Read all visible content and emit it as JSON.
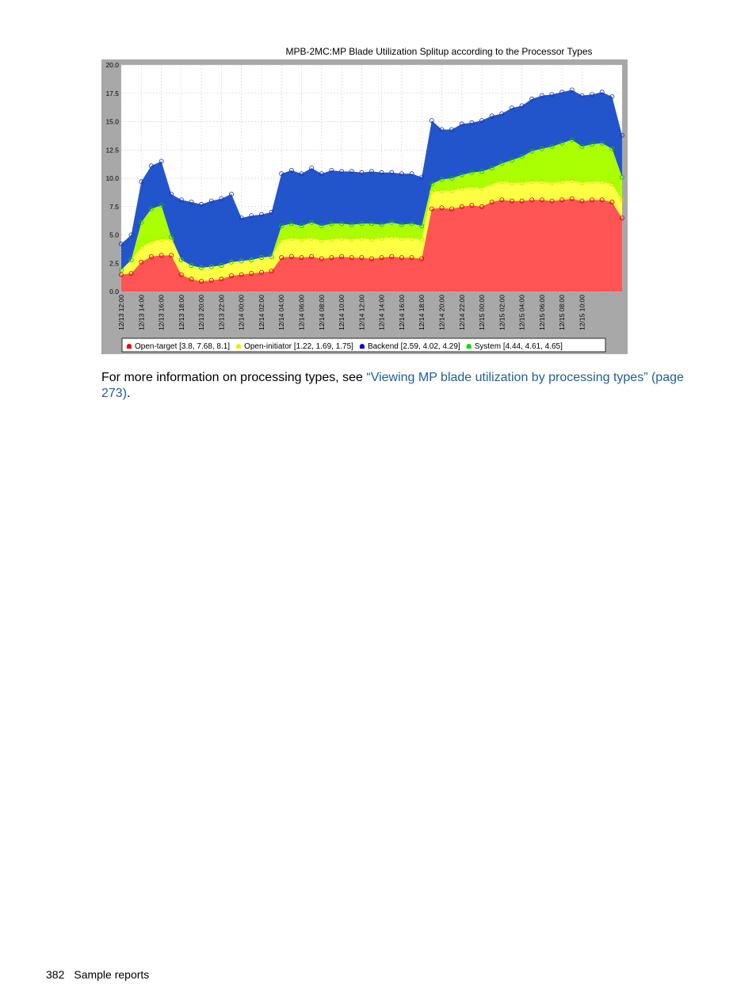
{
  "chart_data": {
    "type": "area",
    "stacked": true,
    "title": "MPB-2MC:MP Blade Utilization Splitup according to the Processor Types",
    "xlabel": "",
    "ylabel": "",
    "ylim": [
      0,
      20
    ],
    "y_ticks": [
      "0.0",
      "2.5",
      "5.0",
      "7.5",
      "10.0",
      "12.5",
      "15.0",
      "17.5",
      "20.0"
    ],
    "x_tick_labels": [
      "12/13 12:00",
      "12/13 14:00",
      "12/13 16:00",
      "12/13 18:00",
      "12/13 20:00",
      "12/13 22:00",
      "12/14 00:00",
      "12/14 02:00",
      "12/14 04:00",
      "12/14 06:00",
      "12/14 08:00",
      "12/14 10:00",
      "12/14 12:00",
      "12/14 14:00",
      "12/14 16:00",
      "12/14 18:00",
      "12/14 20:00",
      "12/14 22:00",
      "12/15 00:00",
      "12/15 02:00",
      "12/15 04:00",
      "12/15 06:00",
      "12/15 08:00",
      "12/15 10:00"
    ],
    "x_hours": [
      0,
      1,
      2,
      3,
      4,
      5,
      6,
      7,
      8,
      9,
      10,
      11,
      12,
      13,
      14,
      15,
      16,
      17,
      18,
      19,
      20,
      21,
      22,
      23,
      24,
      25,
      26,
      27,
      28,
      29,
      30,
      31,
      32,
      33,
      34,
      35,
      36,
      37,
      38,
      39,
      40,
      41,
      42,
      43,
      44,
      45,
      46,
      47,
      48,
      49,
      50
    ],
    "grid": true,
    "legend_position": "bottom",
    "series": [
      {
        "name": "Open-target",
        "legend": "Open-target [3.8, 7.68, 8.1]",
        "color": "#ff5555",
        "values": [
          1.5,
          1.6,
          2.6,
          3.1,
          3.2,
          3.2,
          1.5,
          1.1,
          0.9,
          1.0,
          1.1,
          1.4,
          1.5,
          1.6,
          1.7,
          1.8,
          3.0,
          3.1,
          3.0,
          3.1,
          2.9,
          3.0,
          3.1,
          3.0,
          3.0,
          2.9,
          3.0,
          3.1,
          3.0,
          3.0,
          2.9,
          7.3,
          7.4,
          7.3,
          7.5,
          7.6,
          7.5,
          7.9,
          8.1,
          8.0,
          8.0,
          8.1,
          8.1,
          8.0,
          8.1,
          8.2,
          8.0,
          8.1,
          8.1,
          7.9,
          6.5
        ]
      },
      {
        "name": "Open-initiator",
        "legend": "Open-initiator [1.22, 1.69, 1.75]",
        "color": "#ffff44",
        "values": [
          0.4,
          1.2,
          1.3,
          1.3,
          1.4,
          1.4,
          1.3,
          1.2,
          1.2,
          1.2,
          1.2,
          1.2,
          1.2,
          1.2,
          1.3,
          1.3,
          1.5,
          1.6,
          1.6,
          1.6,
          1.6,
          1.6,
          1.6,
          1.6,
          1.7,
          1.7,
          1.7,
          1.7,
          1.7,
          1.7,
          1.7,
          1.5,
          1.5,
          1.6,
          1.6,
          1.6,
          1.6,
          1.6,
          1.6,
          1.6,
          1.6,
          1.6,
          1.6,
          1.6,
          1.6,
          1.6,
          1.6,
          1.6,
          1.6,
          1.6,
          1.6
        ]
      },
      {
        "name": "System",
        "legend": "System [4.44, 4.61, 4.65]",
        "color": "#aaff00",
        "values": [
          0.0,
          0.0,
          2.2,
          2.9,
          3.0,
          0.2,
          0.0,
          0.0,
          0.0,
          0.0,
          0.0,
          0.0,
          0.0,
          0.0,
          0.0,
          0.0,
          1.3,
          1.3,
          1.2,
          1.4,
          1.3,
          1.4,
          1.3,
          1.3,
          1.3,
          1.4,
          1.2,
          1.3,
          1.2,
          1.3,
          1.2,
          0.7,
          1.0,
          1.1,
          1.2,
          1.3,
          1.5,
          1.4,
          1.6,
          2.0,
          2.3,
          2.7,
          2.9,
          3.2,
          3.4,
          3.6,
          3.2,
          3.3,
          3.4,
          3.1,
          2.0
        ]
      },
      {
        "name": "Backend",
        "legend": "Backend [2.59, 4.02, 4.29]",
        "color": "#2255cc",
        "values": [
          2.3,
          2.2,
          3.6,
          3.8,
          3.9,
          3.8,
          5.3,
          5.6,
          5.6,
          5.8,
          5.9,
          6.0,
          3.8,
          3.9,
          3.8,
          3.9,
          4.6,
          4.7,
          4.6,
          4.8,
          4.6,
          4.7,
          4.6,
          4.7,
          4.5,
          4.6,
          4.6,
          4.4,
          4.5,
          4.4,
          4.3,
          5.6,
          4.4,
          4.3,
          4.5,
          4.4,
          4.5,
          4.6,
          4.4,
          4.6,
          4.5,
          4.6,
          4.7,
          4.6,
          4.5,
          4.4,
          4.5,
          4.4,
          4.5,
          4.6,
          3.7
        ]
      }
    ]
  },
  "paragraph": {
    "prefix": "For more information on processing types, see ",
    "link_text": "“Viewing MP blade utilization by processing types” (page 273)",
    "suffix": "."
  },
  "footer": {
    "page_number": "382",
    "section": "Sample reports"
  }
}
